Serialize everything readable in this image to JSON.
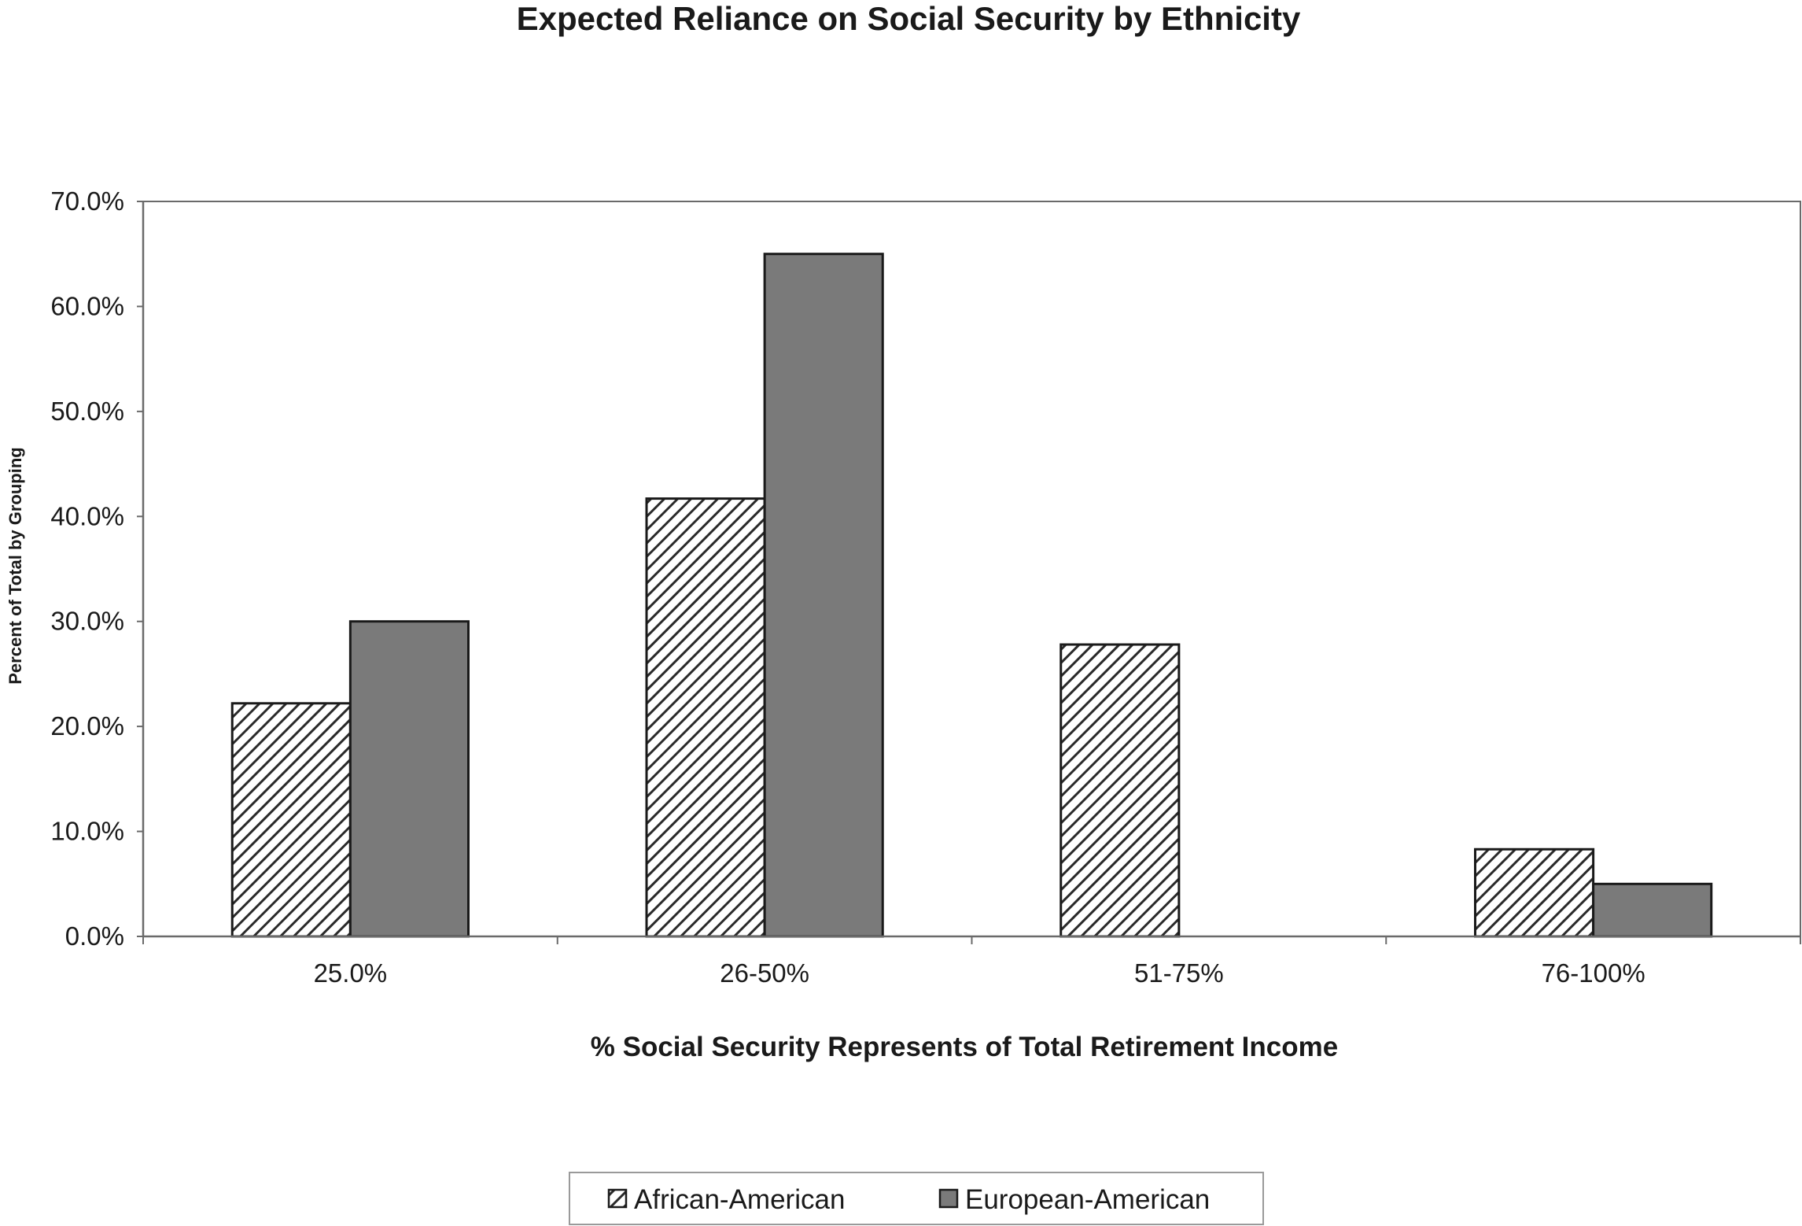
{
  "chart_data": {
    "type": "bar",
    "title": "Expected Reliance on Social Security by Ethnicity",
    "xlabel": "% Social Security Represents of Total Retirement Income",
    "ylabel": "Percent of Total by Grouping",
    "categories": [
      "25.0%",
      "26-50%",
      "51-75%",
      "76-100%"
    ],
    "series": [
      {
        "name": "African-American",
        "values": [
          22.2,
          41.7,
          27.8,
          8.3
        ],
        "fill": "hatched",
        "color": "#3a3a3a"
      },
      {
        "name": "European-American",
        "values": [
          30.0,
          65.0,
          0.0,
          5.0
        ],
        "fill": "solid",
        "color": "#7a7a7a"
      }
    ],
    "ylim": [
      0,
      70
    ],
    "yticks": [
      0,
      10,
      20,
      30,
      40,
      50,
      60,
      70
    ],
    "ytick_labels": [
      "0.0%",
      "10.0%",
      "20.0%",
      "30.0%",
      "40.0%",
      "50.0%",
      "60.0%",
      "70.0%"
    ],
    "grid": false,
    "legend_position": "bottom-center"
  }
}
